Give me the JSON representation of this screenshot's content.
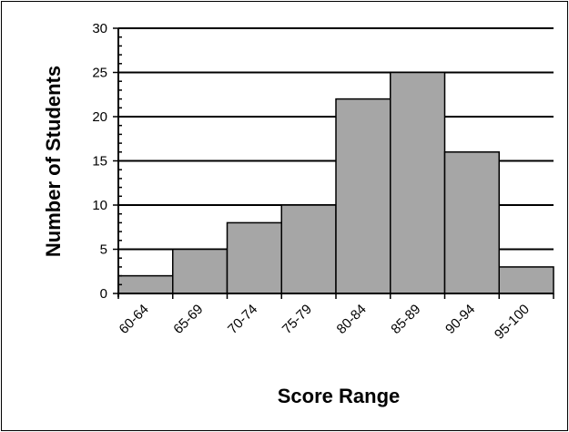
{
  "chart_data": {
    "type": "bar",
    "categories": [
      "60-64",
      "65-69",
      "70-74",
      "75-79",
      "80-84",
      "85-89",
      "90-94",
      "95-100"
    ],
    "values": [
      2,
      5,
      8,
      10,
      22,
      25,
      16,
      3
    ],
    "title": "",
    "xlabel": "Score Range",
    "ylabel": "Number of Students",
    "ylim": [
      0,
      30
    ],
    "yticks": [
      0,
      5,
      10,
      15,
      20,
      25,
      30
    ],
    "grid": true,
    "legend": "none",
    "bar_color": "#a6a6a6",
    "bar_edge_color": "#000000"
  }
}
